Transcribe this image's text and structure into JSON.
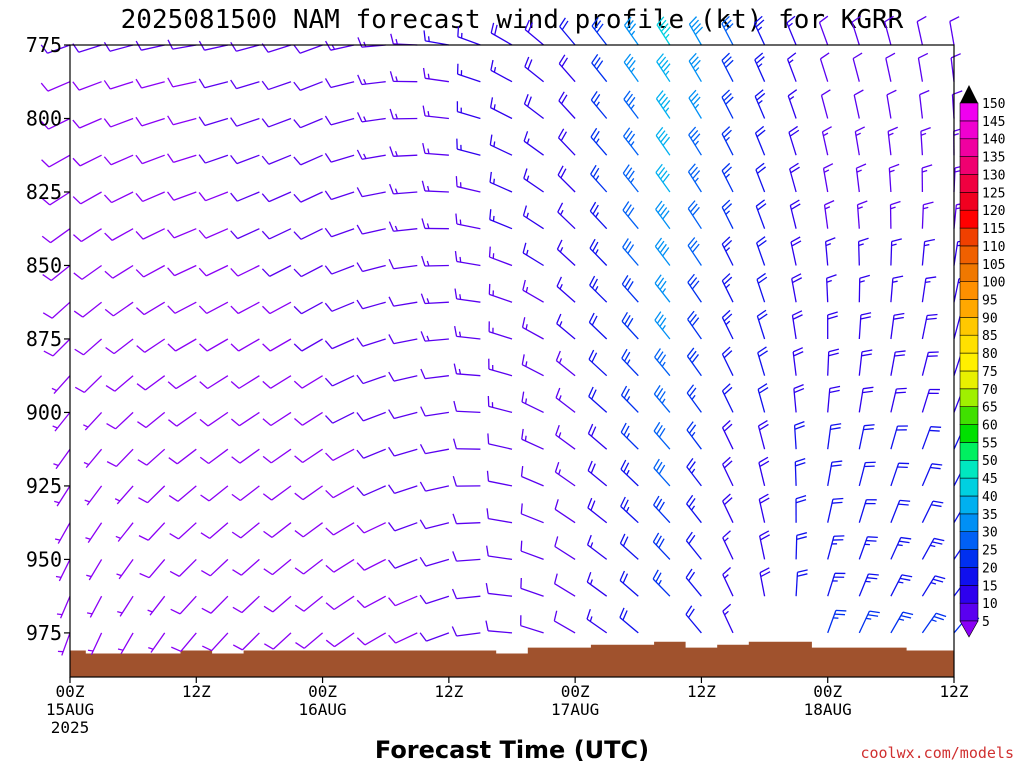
{
  "title": "2025081500 NAM forecast wind profile (kt) for KGRR",
  "credit": "coolwx.com/models",
  "chart_data": {
    "type": "wind-barb-profile",
    "title": "2025081500 NAM forecast wind profile (kt) for KGRR",
    "xlabel": "Forecast Time (UTC)",
    "ylabel": "",
    "x_range_hours": [
      0,
      84
    ],
    "y_range_hpa": [
      775,
      990
    ],
    "y_ticks": [
      775,
      800,
      825,
      850,
      875,
      900,
      925,
      950,
      975
    ],
    "x_ticks": [
      {
        "hour": 0,
        "label": "00Z",
        "date": "15AUG",
        "year": "2025"
      },
      {
        "hour": 12,
        "label": "12Z",
        "date": "",
        "year": ""
      },
      {
        "hour": 24,
        "label": "00Z",
        "date": "16AUG",
        "year": ""
      },
      {
        "hour": 36,
        "label": "12Z",
        "date": "",
        "year": ""
      },
      {
        "hour": 48,
        "label": "00Z",
        "date": "17AUG",
        "year": ""
      },
      {
        "hour": 60,
        "label": "12Z",
        "date": "",
        "year": ""
      },
      {
        "hour": 72,
        "label": "00Z",
        "date": "18AUG",
        "year": ""
      },
      {
        "hour": 84,
        "label": "12Z",
        "date": "",
        "year": ""
      }
    ],
    "levels_hpa": [
      775,
      787.5,
      800,
      812.5,
      825,
      837.5,
      850,
      862.5,
      875,
      887.5,
      900,
      912.5,
      925,
      937.5,
      950,
      962.5,
      975
    ],
    "hours": [
      0,
      3,
      6,
      9,
      12,
      15,
      18,
      21,
      24,
      27,
      30,
      33,
      36,
      39,
      42,
      45,
      48,
      51,
      54,
      57,
      60,
      63,
      66,
      69,
      72,
      75,
      78,
      81,
      84
    ],
    "wind_dir_profile": [
      {
        "hour": 0,
        "dir_low": 200,
        "dir_high": 250
      },
      {
        "hour": 12,
        "dir_low": 220,
        "dir_high": 260
      },
      {
        "hour": 24,
        "dir_low": 230,
        "dir_high": 250
      },
      {
        "hour": 36,
        "dir_low": 250,
        "dir_high": 280
      },
      {
        "hour": 48,
        "dir_low": 300,
        "dir_high": 320
      },
      {
        "hour": 60,
        "dir_low": 320,
        "dir_high": 330
      },
      {
        "hour": 72,
        "dir_low": 20,
        "dir_high": 340
      },
      {
        "hour": 84,
        "dir_low": 40,
        "dir_high": 350
      }
    ],
    "wind_speed_profile_kt": [
      {
        "hour": 0,
        "speed_low": 5,
        "speed_high": 10
      },
      {
        "hour": 12,
        "speed_low": 8,
        "speed_high": 10
      },
      {
        "hour": 24,
        "speed_low": 8,
        "speed_high": 12
      },
      {
        "hour": 36,
        "speed_low": 10,
        "speed_high": 15
      },
      {
        "hour": 48,
        "speed_low": 10,
        "speed_high": 20
      },
      {
        "hour": 57,
        "speed_low": 25,
        "speed_high": 45
      },
      {
        "hour": 63,
        "speed_low": 15,
        "speed_high": 30
      },
      {
        "hour": 72,
        "speed_low": 25,
        "speed_high": 10
      },
      {
        "hour": 84,
        "speed_low": 25,
        "speed_high": 10
      }
    ],
    "terrain_surface_hpa": [
      {
        "hour": 0,
        "p": 981
      },
      {
        "hour": 3,
        "p": 982
      },
      {
        "hour": 6,
        "p": 982
      },
      {
        "hour": 9,
        "p": 982
      },
      {
        "hour": 12,
        "p": 981
      },
      {
        "hour": 15,
        "p": 982
      },
      {
        "hour": 18,
        "p": 981
      },
      {
        "hour": 21,
        "p": 981
      },
      {
        "hour": 24,
        "p": 981
      },
      {
        "hour": 27,
        "p": 981
      },
      {
        "hour": 30,
        "p": 981
      },
      {
        "hour": 33,
        "p": 981
      },
      {
        "hour": 36,
        "p": 981
      },
      {
        "hour": 39,
        "p": 981
      },
      {
        "hour": 42,
        "p": 982
      },
      {
        "hour": 45,
        "p": 980
      },
      {
        "hour": 48,
        "p": 980
      },
      {
        "hour": 51,
        "p": 979
      },
      {
        "hour": 54,
        "p": 979
      },
      {
        "hour": 57,
        "p": 978
      },
      {
        "hour": 60,
        "p": 980
      },
      {
        "hour": 63,
        "p": 979
      },
      {
        "hour": 66,
        "p": 978
      },
      {
        "hour": 69,
        "p": 978
      },
      {
        "hour": 72,
        "p": 980
      },
      {
        "hour": 75,
        "p": 980
      },
      {
        "hour": 78,
        "p": 980
      },
      {
        "hour": 81,
        "p": 981
      },
      {
        "hour": 84,
        "p": 981
      }
    ],
    "terrain_color": "#A0522D",
    "colorbar": {
      "labels": [
        5,
        10,
        15,
        20,
        25,
        30,
        35,
        40,
        45,
        50,
        55,
        60,
        65,
        70,
        75,
        80,
        85,
        90,
        95,
        100,
        105,
        110,
        115,
        120,
        125,
        130,
        135,
        140,
        145,
        150
      ],
      "colors": [
        "#8A00F5",
        "#5A00F0",
        "#2E00EE",
        "#1010EE",
        "#0030F0",
        "#0060F5",
        "#0090F5",
        "#00B0F0",
        "#00D0E0",
        "#00E8C0",
        "#00F060",
        "#00E000",
        "#40E000",
        "#A0F000",
        "#E8F000",
        "#FFF000",
        "#FFE000",
        "#FFC800",
        "#FFA800",
        "#FF9000",
        "#F07800",
        "#F06000",
        "#F04000",
        "#FF0000",
        "#F00020",
        "#F00040",
        "#F00070",
        "#F000A0",
        "#F000D0",
        "#F000F0"
      ]
    }
  }
}
